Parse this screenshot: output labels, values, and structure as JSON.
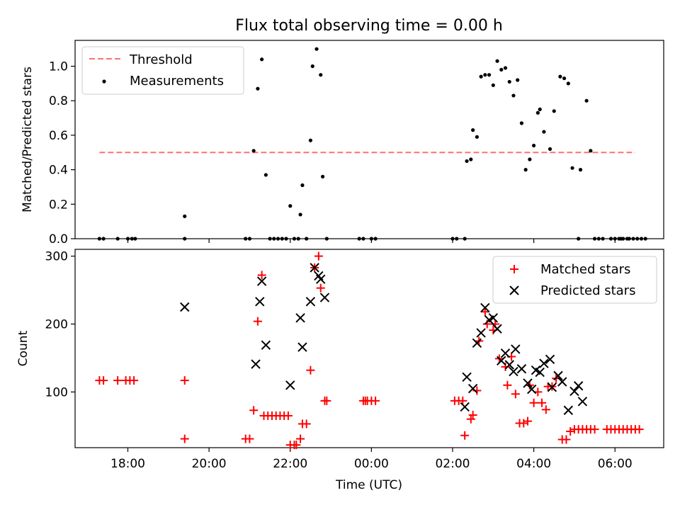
{
  "chart_data": [
    {
      "type": "scatter",
      "title": "Flux total observing time = 0.00 h",
      "xlabel": "",
      "ylabel": "Matched/Predicted stars",
      "ylim": [
        0,
        1.15
      ],
      "yticks": [
        0.0,
        0.2,
        0.4,
        0.6,
        0.8,
        1.0
      ],
      "ytick_labels": [
        "0.0",
        "0.2",
        "0.4",
        "0.6",
        "0.8",
        "1.0"
      ],
      "legend_position": "top-left",
      "threshold": {
        "name": "Threshold",
        "value": 0.5,
        "x_from": 17.3,
        "x_to": 30.5,
        "color": "#ff7070"
      },
      "series": [
        {
          "name": "Measurements",
          "color": "#000000",
          "points": [
            [
              17.3,
              0
            ],
            [
              17.4,
              0
            ],
            [
              17.75,
              0
            ],
            [
              18.0,
              0
            ],
            [
              18.1,
              0
            ],
            [
              18.18,
              0
            ],
            [
              19.4,
              0.13
            ],
            [
              19.4,
              0
            ],
            [
              20.9,
              0
            ],
            [
              21.0,
              0
            ],
            [
              21.1,
              0.51
            ],
            [
              21.2,
              0.87
            ],
            [
              21.3,
              1.04
            ],
            [
              21.4,
              0.37
            ],
            [
              21.5,
              0
            ],
            [
              21.6,
              0
            ],
            [
              21.7,
              0
            ],
            [
              21.8,
              0
            ],
            [
              21.9,
              0
            ],
            [
              22.0,
              0.19
            ],
            [
              22.1,
              0
            ],
            [
              22.2,
              0
            ],
            [
              22.25,
              0.14
            ],
            [
              22.3,
              0.31
            ],
            [
              22.4,
              0
            ],
            [
              22.5,
              0.57
            ],
            [
              22.55,
              1.0
            ],
            [
              22.65,
              1.1
            ],
            [
              22.75,
              0.95
            ],
            [
              22.8,
              0.36
            ],
            [
              22.9,
              0
            ],
            [
              23.7,
              0
            ],
            [
              23.8,
              0
            ],
            [
              24.0,
              0
            ],
            [
              24.1,
              0
            ],
            [
              26.0,
              0
            ],
            [
              26.1,
              0
            ],
            [
              26.3,
              0
            ],
            [
              26.35,
              0.45
            ],
            [
              26.45,
              0.46
            ],
            [
              26.5,
              0.63
            ],
            [
              26.6,
              0.59
            ],
            [
              26.7,
              0.94
            ],
            [
              26.8,
              0.95
            ],
            [
              26.9,
              0.95
            ],
            [
              27.0,
              0.89
            ],
            [
              27.1,
              1.03
            ],
            [
              27.2,
              0.98
            ],
            [
              27.3,
              0.99
            ],
            [
              27.4,
              0.91
            ],
            [
              27.5,
              0.83
            ],
            [
              27.6,
              0.92
            ],
            [
              27.7,
              0.67
            ],
            [
              27.8,
              0.4
            ],
            [
              27.9,
              0.46
            ],
            [
              28.0,
              0.54
            ],
            [
              28.1,
              0.73
            ],
            [
              28.15,
              0.75
            ],
            [
              28.25,
              0.62
            ],
            [
              28.4,
              0.52
            ],
            [
              28.5,
              0.74
            ],
            [
              28.65,
              0.94
            ],
            [
              28.75,
              0.93
            ],
            [
              28.85,
              0.9
            ],
            [
              28.95,
              0.41
            ],
            [
              29.15,
              0.4
            ],
            [
              29.3,
              0.8
            ],
            [
              29.4,
              0.51
            ],
            [
              29.1,
              0
            ],
            [
              29.5,
              0
            ],
            [
              29.6,
              0
            ],
            [
              29.7,
              0
            ],
            [
              29.9,
              0
            ],
            [
              30.0,
              0
            ],
            [
              30.1,
              0
            ],
            [
              30.15,
              0
            ],
            [
              30.2,
              0
            ],
            [
              30.3,
              0
            ],
            [
              30.35,
              0
            ],
            [
              30.45,
              0
            ],
            [
              30.55,
              0
            ],
            [
              30.65,
              0
            ],
            [
              30.75,
              0
            ]
          ]
        }
      ]
    },
    {
      "type": "scatter",
      "title": "",
      "xlabel": "Time (UTC)",
      "ylabel": "Count",
      "ylim": [
        18,
        310
      ],
      "yticks": [
        100,
        200,
        300
      ],
      "ytick_labels": [
        "100",
        "200",
        "300"
      ],
      "xlim": [
        16.7,
        31.2
      ],
      "xticks": [
        18,
        20,
        22,
        24,
        26,
        28,
        30
      ],
      "xtick_labels": [
        "18:00",
        "20:00",
        "22:00",
        "00:00",
        "02:00",
        "04:00",
        "06:00"
      ],
      "legend_position": "top-right",
      "series": [
        {
          "name": "Matched stars",
          "color": "#ff0000",
          "marker": "plus",
          "points": [
            [
              17.3,
              117
            ],
            [
              17.4,
              117
            ],
            [
              17.75,
              117
            ],
            [
              17.95,
              117
            ],
            [
              18.05,
              117
            ],
            [
              18.15,
              117
            ],
            [
              19.4,
              117
            ],
            [
              19.4,
              31
            ],
            [
              20.9,
              31
            ],
            [
              21.0,
              31
            ],
            [
              21.1,
              73
            ],
            [
              21.2,
              204
            ],
            [
              21.3,
              272
            ],
            [
              21.35,
              65
            ],
            [
              21.45,
              65
            ],
            [
              21.55,
              65
            ],
            [
              21.65,
              65
            ],
            [
              21.75,
              65
            ],
            [
              21.85,
              65
            ],
            [
              21.95,
              65
            ],
            [
              22.0,
              22
            ],
            [
              22.1,
              22
            ],
            [
              22.15,
              22
            ],
            [
              22.25,
              31
            ],
            [
              22.3,
              53
            ],
            [
              22.4,
              53
            ],
            [
              22.5,
              132
            ],
            [
              22.6,
              283
            ],
            [
              22.7,
              300
            ],
            [
              22.75,
              253
            ],
            [
              22.85,
              87
            ],
            [
              22.9,
              87
            ],
            [
              23.8,
              87
            ],
            [
              23.85,
              87
            ],
            [
              23.9,
              87
            ],
            [
              24.0,
              87
            ],
            [
              24.1,
              87
            ],
            [
              26.05,
              87
            ],
            [
              26.15,
              87
            ],
            [
              26.25,
              87
            ],
            [
              26.3,
              36
            ],
            [
              26.45,
              60
            ],
            [
              26.5,
              66
            ],
            [
              26.6,
              102
            ],
            [
              26.65,
              175
            ],
            [
              26.8,
              218
            ],
            [
              26.85,
              200
            ],
            [
              27.0,
              191
            ],
            [
              27.05,
              200
            ],
            [
              27.15,
              149
            ],
            [
              27.3,
              137
            ],
            [
              27.35,
              110
            ],
            [
              27.45,
              152
            ],
            [
              27.55,
              97
            ],
            [
              27.65,
              54
            ],
            [
              27.75,
              54
            ],
            [
              27.85,
              57
            ],
            [
              27.9,
              110
            ],
            [
              28.0,
              84
            ],
            [
              28.1,
              100
            ],
            [
              28.2,
              84
            ],
            [
              28.3,
              74
            ],
            [
              28.35,
              108
            ],
            [
              28.45,
              108
            ],
            [
              28.55,
              120
            ],
            [
              28.7,
              30
            ],
            [
              28.8,
              30
            ],
            [
              28.9,
              42
            ],
            [
              29.0,
              45
            ],
            [
              29.1,
              45
            ],
            [
              29.2,
              45
            ],
            [
              29.3,
              45
            ],
            [
              29.4,
              45
            ],
            [
              29.5,
              45
            ],
            [
              29.8,
              45
            ],
            [
              29.9,
              45
            ],
            [
              30.0,
              45
            ],
            [
              30.1,
              45
            ],
            [
              30.2,
              45
            ],
            [
              30.3,
              45
            ],
            [
              30.4,
              45
            ],
            [
              30.5,
              45
            ],
            [
              30.6,
              45
            ]
          ]
        },
        {
          "name": "Predicted stars",
          "color": "#000000",
          "marker": "x",
          "points": [
            [
              19.4,
              225
            ],
            [
              21.15,
              141
            ],
            [
              21.25,
              233
            ],
            [
              21.3,
              263
            ],
            [
              21.4,
              169
            ],
            [
              22.0,
              110
            ],
            [
              22.25,
              209
            ],
            [
              22.3,
              166
            ],
            [
              22.5,
              233
            ],
            [
              22.6,
              283
            ],
            [
              22.7,
              271
            ],
            [
              22.75,
              266
            ],
            [
              22.85,
              239
            ],
            [
              26.3,
              78
            ],
            [
              26.35,
              122
            ],
            [
              26.5,
              105
            ],
            [
              26.6,
              172
            ],
            [
              26.7,
              187
            ],
            [
              26.8,
              224
            ],
            [
              26.9,
              206
            ],
            [
              27.0,
              209
            ],
            [
              27.1,
              193
            ],
            [
              27.2,
              146
            ],
            [
              27.3,
              157
            ],
            [
              27.4,
              140
            ],
            [
              27.5,
              130
            ],
            [
              27.55,
              163
            ],
            [
              27.7,
              134
            ],
            [
              27.85,
              113
            ],
            [
              27.95,
              104
            ],
            [
              28.05,
              132
            ],
            [
              28.15,
              129
            ],
            [
              28.25,
              142
            ],
            [
              28.4,
              148
            ],
            [
              28.45,
              107
            ],
            [
              28.6,
              124
            ],
            [
              28.7,
              115
            ],
            [
              28.85,
              73
            ],
            [
              29.0,
              101
            ],
            [
              29.1,
              109
            ],
            [
              29.2,
              86
            ]
          ]
        }
      ]
    }
  ]
}
